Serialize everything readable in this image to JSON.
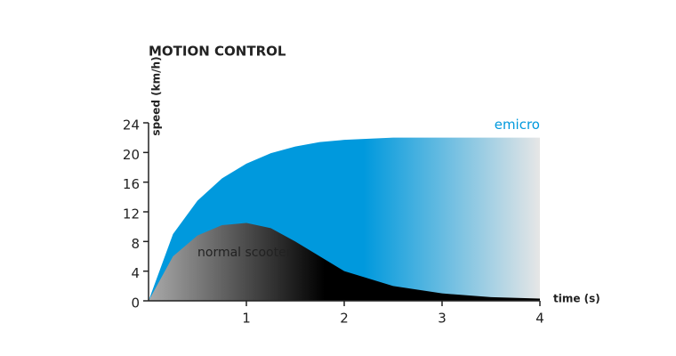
{
  "chart_data": {
    "type": "area",
    "title": "MOTION CONTROL",
    "ylabel": "speed (km/h)",
    "xlabel": "time (s)",
    "x": [
      0,
      0.25,
      0.5,
      0.75,
      1,
      1.25,
      1.5,
      1.75,
      2,
      2.5,
      3,
      3.5,
      4
    ],
    "series": [
      {
        "name": "emicro",
        "color": "#0099dd",
        "values": [
          0,
          9,
          13.5,
          16.5,
          18.5,
          19.9,
          20.8,
          21.4,
          21.7,
          22,
          22,
          22,
          22
        ]
      },
      {
        "name": "normal scooter",
        "color": "#aaaaaa",
        "values": [
          0,
          6,
          8.8,
          10.2,
          10.5,
          9.8,
          8,
          6,
          4,
          2,
          1,
          0.5,
          0.3
        ]
      }
    ],
    "xlim": [
      0,
      4
    ],
    "ylim": [
      0,
      24
    ],
    "xticks": [
      1,
      2,
      3,
      4
    ],
    "yticks": [
      0,
      4,
      8,
      12,
      16,
      20,
      24
    ]
  }
}
